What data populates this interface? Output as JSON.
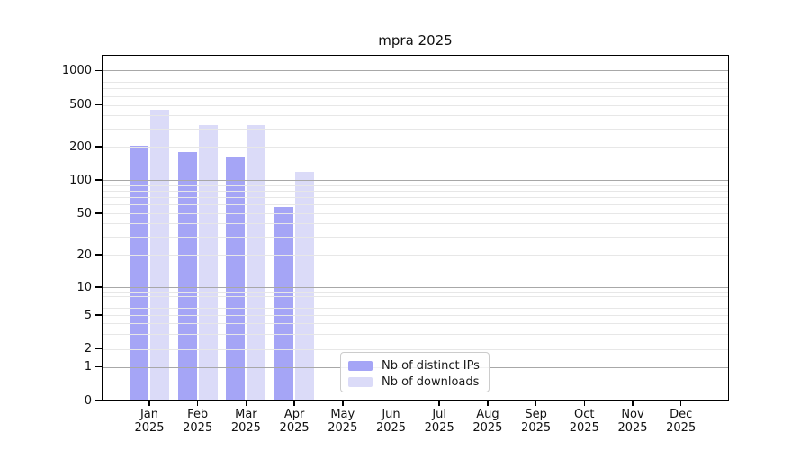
{
  "chart_data": {
    "type": "bar",
    "title": "mpra 2025",
    "year_label": "2025",
    "categories": [
      "Jan",
      "Feb",
      "Mar",
      "Apr",
      "May",
      "Jun",
      "Jul",
      "Aug",
      "Sep",
      "Oct",
      "Nov",
      "Dec"
    ],
    "series": [
      {
        "name": "Nb of distinct IPs",
        "color": "#a5a5f6",
        "values": [
          205,
          180,
          160,
          57,
          null,
          null,
          null,
          null,
          null,
          null,
          null,
          null
        ]
      },
      {
        "name": "Nb of downloads",
        "color": "#dbdbf8",
        "values": [
          450,
          320,
          320,
          118,
          null,
          null,
          null,
          null,
          null,
          null,
          null,
          null
        ]
      }
    ],
    "y_axis": {
      "scale": "log-with-zero",
      "tick_values": [
        0,
        1,
        2,
        5,
        10,
        20,
        50,
        100,
        200,
        500,
        1000
      ],
      "tick_labels": [
        "0",
        "1",
        "2",
        "5",
        "10",
        "20",
        "50",
        "100",
        "200",
        "500",
        "1000"
      ],
      "ylim": [
        0,
        1400
      ]
    },
    "x_axis": {
      "tick_label_line2": "2025"
    },
    "grid": {
      "major_values": [
        1,
        10,
        100,
        1000
      ],
      "minor_subs": [
        2,
        3,
        4,
        5,
        6,
        7,
        8,
        9
      ],
      "major_color": "#a8a8a8",
      "minor_color": "#e7e7e7",
      "drawn_above_bars": true
    },
    "legend": {
      "items": [
        "Nb of distinct IPs",
        "Nb of downloads"
      ],
      "position": "inside-bottom-center"
    }
  }
}
